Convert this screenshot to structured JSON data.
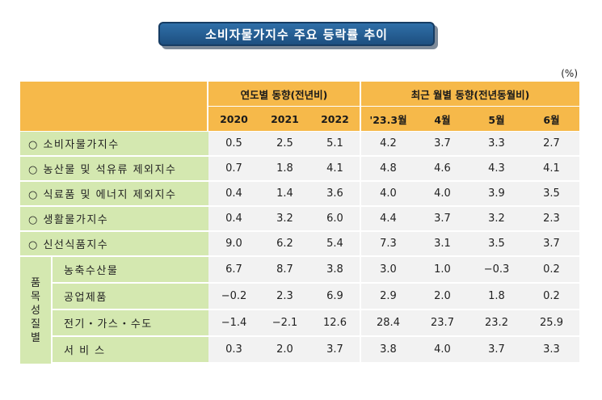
{
  "title": "소비자물가지수 주요 등락률 추이",
  "unit": "(%)",
  "header": {
    "group_annual": "연도별 동향(전년비)",
    "group_monthly": "최근 월별 동향(전년동월비)",
    "years": [
      "2020",
      "2021",
      "2022"
    ],
    "months": [
      "'23.3월",
      "4월",
      "5월",
      "6월"
    ]
  },
  "rows": [
    {
      "label": "○ 소비자물가지수",
      "values": [
        "0.5",
        "2.5",
        "5.1",
        "4.2",
        "3.7",
        "3.3",
        "2.7"
      ]
    },
    {
      "label": "○ 농산물 및 석유류 제외지수",
      "values": [
        "0.7",
        "1.8",
        "4.1",
        "4.8",
        "4.6",
        "4.3",
        "4.1"
      ]
    },
    {
      "label": "○ 식료품 및 에너지 제외지수",
      "values": [
        "0.4",
        "1.4",
        "3.6",
        "4.0",
        "4.0",
        "3.9",
        "3.5"
      ]
    },
    {
      "label": "○ 생활물가지수",
      "values": [
        "0.4",
        "3.2",
        "6.0",
        "4.4",
        "3.7",
        "3.2",
        "2.3"
      ]
    },
    {
      "label": "○ 신선식품지수",
      "values": [
        "9.0",
        "6.2",
        "5.4",
        "7.3",
        "3.1",
        "3.5",
        "3.7"
      ]
    }
  ],
  "group_label": "품\n목\n성\n질\n별",
  "group_rows": [
    {
      "label": "농축수산물",
      "values": [
        "6.7",
        "8.7",
        "3.8",
        "3.0",
        "1.0",
        "−0.3",
        "0.2"
      ]
    },
    {
      "label": "공업제품",
      "values": [
        "−0.2",
        "2.3",
        "6.9",
        "2.9",
        "2.0",
        "1.8",
        "0.2"
      ]
    },
    {
      "label": "전기・가스・수도",
      "values": [
        "−1.4",
        "−2.1",
        "12.6",
        "28.4",
        "23.7",
        "23.2",
        "25.9"
      ]
    },
    {
      "label": "서 비 스",
      "values": [
        "0.3",
        "2.0",
        "3.7",
        "3.8",
        "4.0",
        "3.7",
        "3.3"
      ]
    }
  ]
}
